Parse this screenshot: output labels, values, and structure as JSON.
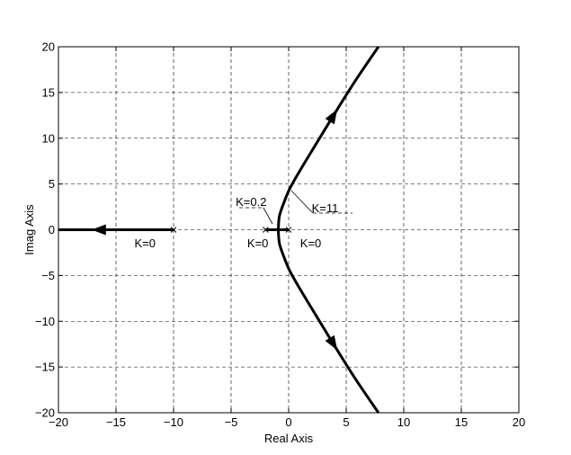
{
  "chart_data": {
    "type": "line",
    "title": "",
    "xlabel": "Real Axis",
    "ylabel": "Imag Axis",
    "xlim": [
      -20,
      20
    ],
    "ylim": [
      -20,
      20
    ],
    "xticks": [
      -20,
      -15,
      -10,
      -5,
      0,
      5,
      10,
      15,
      20
    ],
    "yticks": [
      -20,
      -15,
      -10,
      -5,
      0,
      5,
      10,
      15,
      20
    ],
    "xtick_labels": [
      "−20",
      "−15",
      "−10",
      "−5",
      "0",
      "5",
      "10",
      "15",
      "20"
    ],
    "ytick_labels": [
      "−20",
      "−15",
      "−10",
      "−5",
      "0",
      "5",
      "10",
      "15",
      "20"
    ],
    "grid": true,
    "poles": [
      {
        "x": -10,
        "y": 0
      },
      {
        "x": -2,
        "y": 0
      },
      {
        "x": 0,
        "y": 0
      }
    ],
    "series": [
      {
        "x": [
          -10,
          -20
        ],
        "y": [
          0,
          0
        ]
      },
      {
        "x": [
          -2,
          -0.9
        ],
        "y": [
          0,
          0
        ]
      },
      {
        "x": [
          0,
          -0.9
        ],
        "y": [
          0,
          0
        ]
      },
      {
        "x": [
          -0.9,
          -0.8,
          -0.4,
          0.1,
          1.0,
          2.2,
          3.9,
          5.8,
          7.8
        ],
        "y": [
          0,
          1.5,
          3.0,
          4.5,
          6.5,
          9.0,
          12.5,
          16.3,
          20
        ]
      },
      {
        "x": [
          -0.9,
          -0.8,
          -0.4,
          0.1,
          1.0,
          2.2,
          3.9,
          5.8,
          7.8
        ],
        "y": [
          0,
          -1.5,
          -3.0,
          -4.5,
          -6.5,
          -9.0,
          -12.5,
          -16.3,
          -20
        ]
      }
    ],
    "arrows": [
      {
        "x": -16.5,
        "y": 0,
        "direction": "left"
      },
      {
        "x": 3.9,
        "y": 12.5,
        "direction": "outward"
      },
      {
        "x": 3.9,
        "y": -12.5,
        "direction": "outward"
      }
    ],
    "annotations": [
      {
        "text": "K=0",
        "x": -13.4,
        "y": -1.5
      },
      {
        "text": "K=0",
        "x": -3.6,
        "y": -1.5
      },
      {
        "text": "K=0",
        "x": 1.0,
        "y": -1.5
      },
      {
        "text": "K=0.2",
        "x": -4.6,
        "y": 3.0
      },
      {
        "text": "K=11",
        "x": 2.0,
        "y": 2.3
      }
    ]
  }
}
